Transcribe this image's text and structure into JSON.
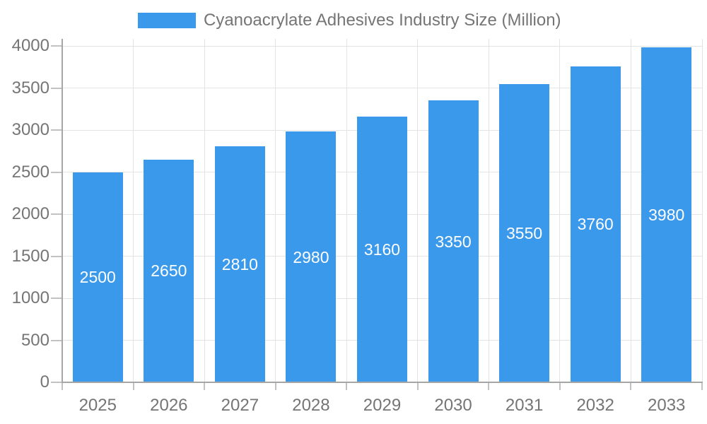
{
  "chart_data": {
    "type": "bar",
    "title": "Cyanoacrylate Adhesives Industry Size (Million)",
    "categories": [
      "2025",
      "2026",
      "2027",
      "2028",
      "2029",
      "2030",
      "2031",
      "2032",
      "2033"
    ],
    "values": [
      2500,
      2650,
      2810,
      2980,
      3160,
      3350,
      3550,
      3760,
      3980
    ],
    "bar_value_labels": [
      "2500",
      "2650",
      "2810",
      "2980",
      "3160",
      "3350",
      "3550",
      "3760",
      "3980"
    ],
    "xlabel": "",
    "ylabel": "",
    "ylim": [
      0,
      4000
    ],
    "yticks": [
      0,
      500,
      1000,
      1500,
      2000,
      2500,
      3000,
      3500,
      4000
    ],
    "ytick_labels": [
      "0",
      "500",
      "1000",
      "1500",
      "2000",
      "2500",
      "3000",
      "3500",
      "4000"
    ],
    "grid": true,
    "legend_position": "top",
    "colors": {
      "bar": "#3B99EB",
      "bar_label": "#FFFFFF",
      "axis_text": "#757575",
      "gridline": "#E4E4E4",
      "axis_line": "#A6A6A6",
      "tick": "#C2C2C2",
      "background": "#FFFFFF"
    }
  }
}
